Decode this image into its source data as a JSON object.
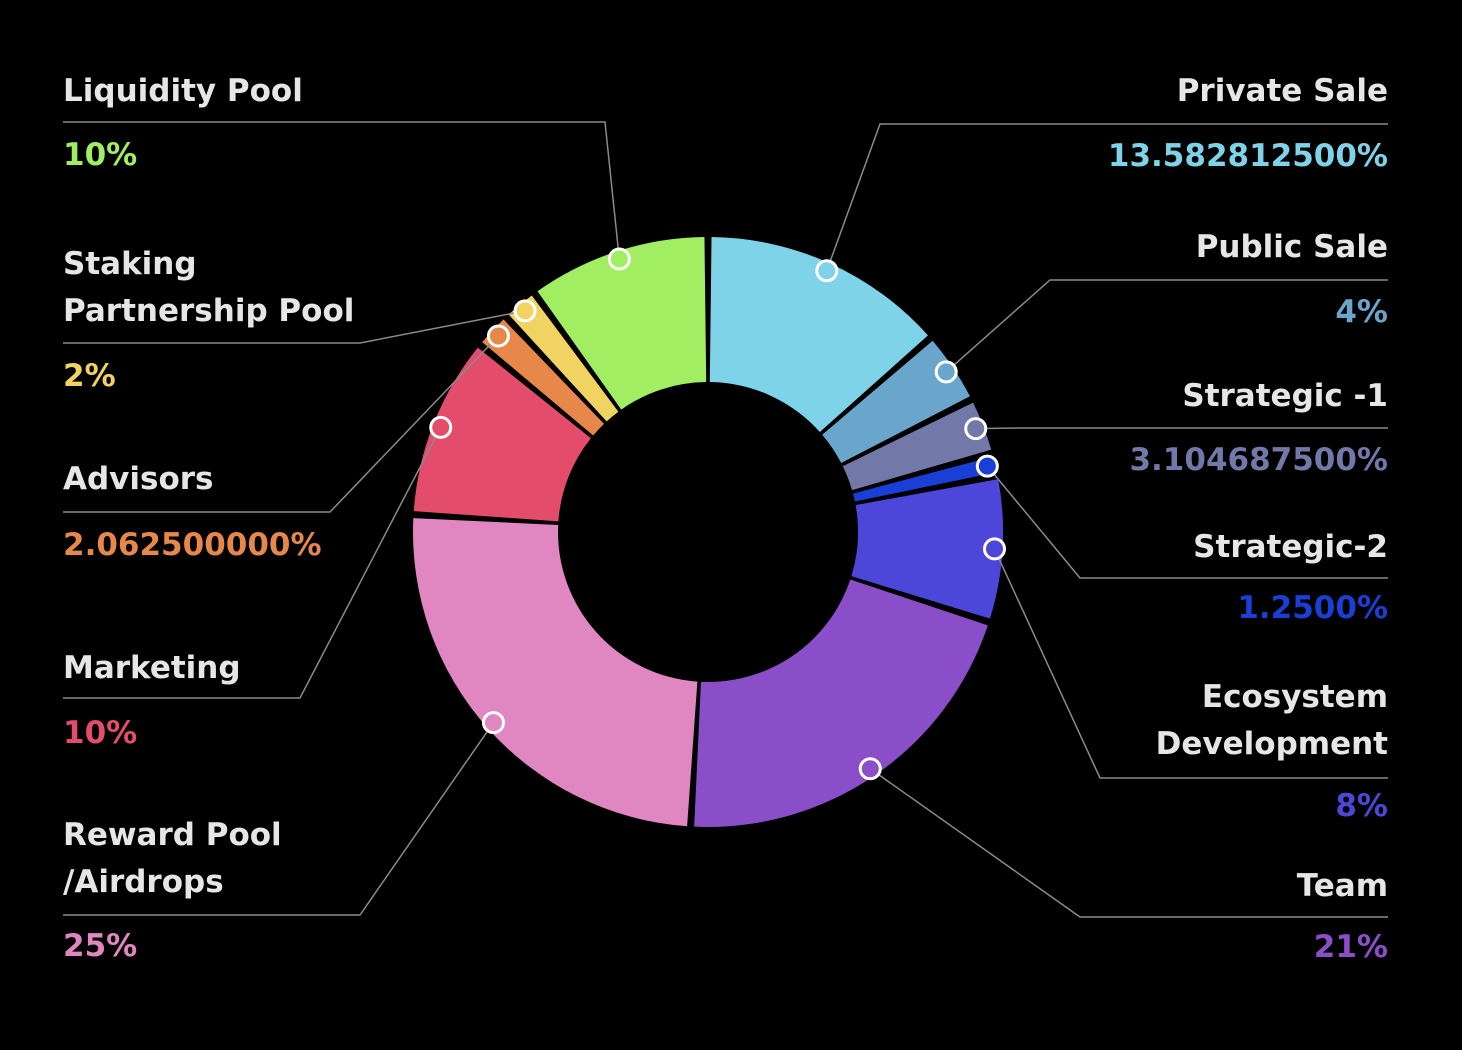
{
  "chart_data": {
    "type": "donut",
    "categories": [
      "Private Sale",
      "Public Sale",
      "Strategic -1",
      "Strategic-2",
      "Ecosystem\nDevelopment",
      "Team",
      "Reward Pool\n/Airdrops",
      "Marketing",
      "Advisors",
      "Staking\nPartnership Pool",
      "Liquidity Pool"
    ],
    "values": [
      13.5828125,
      4,
      3.1046875,
      1.25,
      8,
      21,
      25,
      10,
      2.0625,
      2,
      10
    ],
    "value_labels": [
      "13.582812500%",
      "4%",
      "3.104687500%",
      "1.2500%",
      "8%",
      "21%",
      "25%",
      "10%",
      "2.062500000%",
      "2%",
      "10%"
    ],
    "colors": [
      "#7fd3e8",
      "#6aa6cc",
      "#7278a8",
      "#1a3fd6",
      "#4c47d9",
      "#8a4fc8",
      "#e086c0",
      "#e44c6c",
      "#e8874a",
      "#f0d360",
      "#a2ee62"
    ]
  }
}
